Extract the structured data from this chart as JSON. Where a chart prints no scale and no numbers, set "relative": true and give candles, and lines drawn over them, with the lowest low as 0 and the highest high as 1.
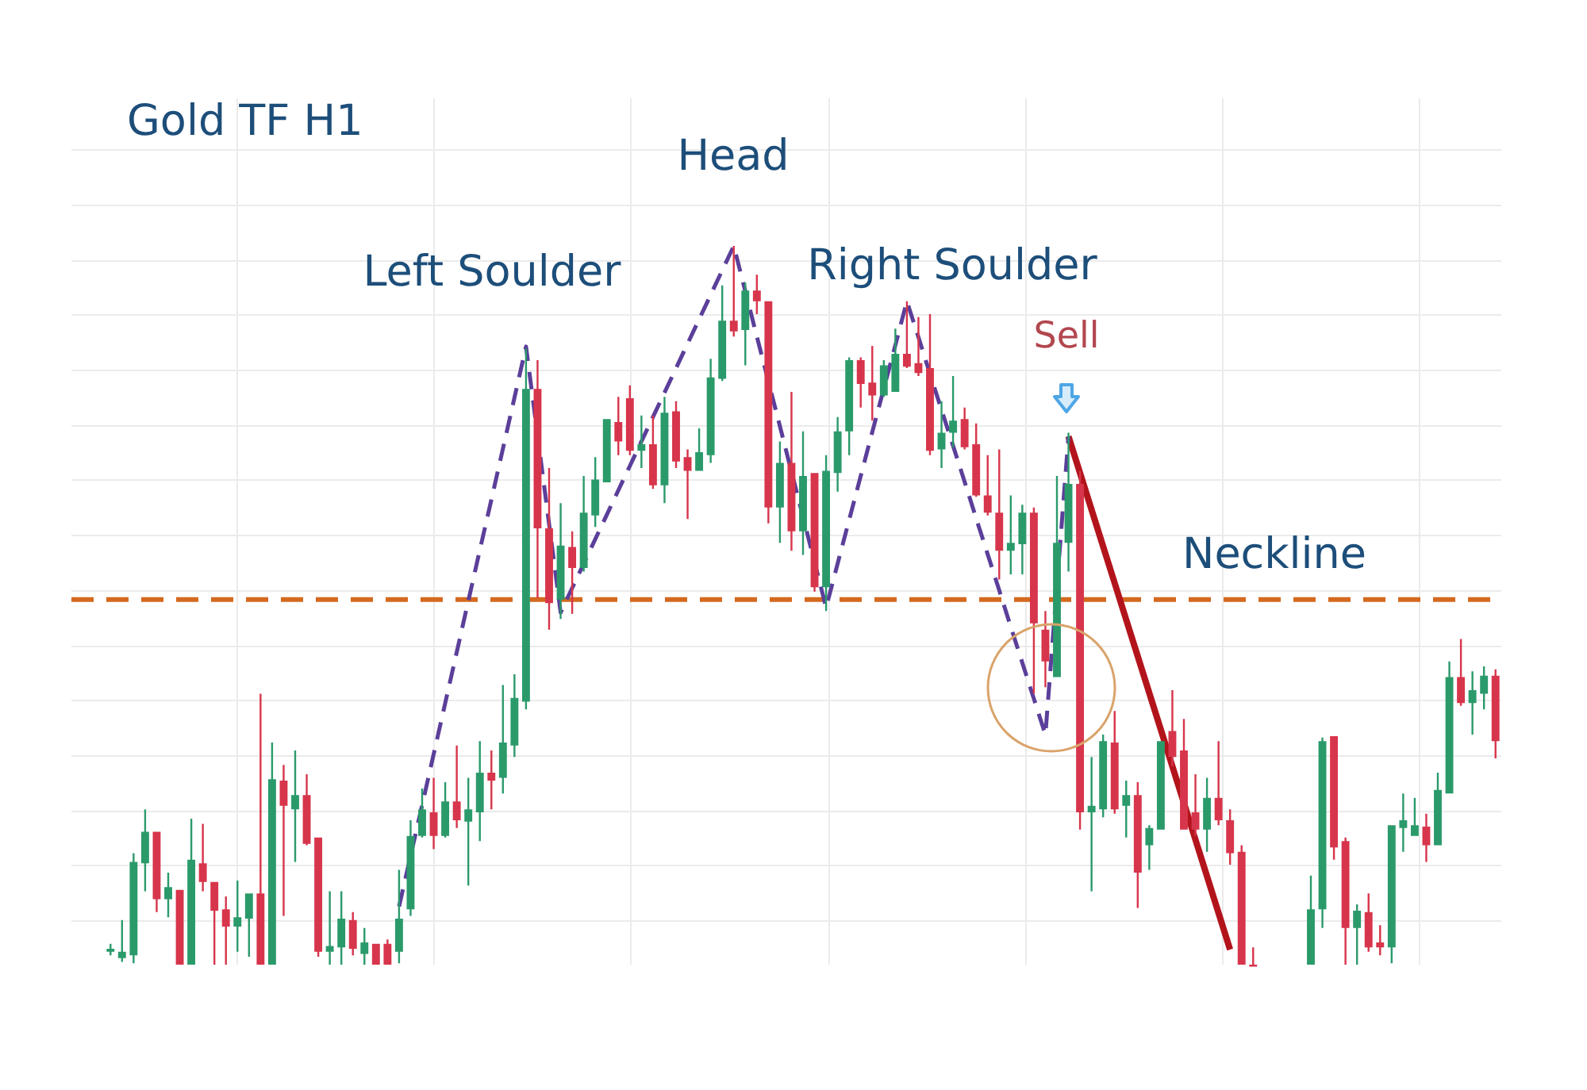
{
  "chart_data": {
    "type": "candlestick",
    "title": "Gold TF H1",
    "relative": true,
    "grid": true,
    "categories": [
      null,
      null,
      null,
      null,
      null,
      null,
      null,
      null,
      null,
      null,
      null,
      null,
      null,
      null,
      null,
      null,
      null,
      null,
      null,
      null,
      null,
      null,
      null,
      null,
      null,
      null,
      null,
      null,
      null,
      null,
      null,
      null,
      null,
      null,
      null,
      null,
      null,
      null,
      null,
      null,
      null,
      null,
      null,
      null,
      null,
      null,
      null,
      null,
      null,
      null,
      null,
      null,
      null,
      null,
      null,
      null,
      null,
      null,
      null,
      null,
      null,
      null,
      null,
      null,
      null,
      null,
      null,
      null,
      null,
      null,
      null,
      null,
      null,
      null,
      null,
      null,
      null,
      null,
      null,
      null,
      null,
      null,
      null,
      null,
      null,
      null,
      null,
      null,
      null,
      null,
      null,
      null,
      null,
      null,
      null,
      null,
      null,
      null,
      null,
      null,
      null,
      null,
      null,
      null,
      null,
      null,
      null,
      null,
      null,
      null,
      null,
      null,
      null,
      null,
      null,
      null,
      null,
      null,
      null,
      null,
      null
    ],
    "ohlc": [
      [
        0.018,
        0.029,
        0.013,
        0.022
      ],
      [
        0.009,
        0.062,
        0.004,
        0.018
      ],
      [
        0.013,
        0.155,
        0.002,
        0.143
      ],
      [
        0.141,
        0.216,
        0.102,
        0.185
      ],
      [
        0.185,
        0.185,
        0.073,
        0.091
      ],
      [
        0.091,
        0.128,
        0.066,
        0.108
      ],
      [
        0.104,
        0.104,
        0,
        0
      ],
      [
        0,
        0.203,
        0,
        0.146
      ],
      [
        0.141,
        0.196,
        0.102,
        0.115
      ],
      [
        0.115,
        0.115,
        0,
        0.075
      ],
      [
        0.077,
        0.095,
        0,
        0.053
      ],
      [
        0.053,
        0.117,
        0.018,
        0.066
      ],
      [
        0.064,
        0.099,
        0.011,
        0.099
      ],
      [
        0.099,
        0.377,
        0,
        0
      ],
      [
        0,
        0.309,
        0,
        0.258
      ],
      [
        0.256,
        0.278,
        0.068,
        0.221
      ],
      [
        0.216,
        0.298,
        0.143,
        0.236
      ],
      [
        0.236,
        0.265,
        0.166,
        0.168
      ],
      [
        0.177,
        0.177,
        0.011,
        0.018
      ],
      [
        0.018,
        0.102,
        0,
        0.026
      ],
      [
        0.024,
        0.102,
        0,
        0.064
      ],
      [
        0.062,
        0.073,
        0.013,
        0.022
      ],
      [
        0.015,
        0.051,
        0,
        0.031
      ],
      [
        0.029,
        0.029,
        0,
        0
      ],
      [
        0.029,
        0.035,
        0,
        0
      ],
      [
        0.018,
        0.132,
        0.002,
        0.064
      ],
      [
        0.077,
        0.201,
        0.068,
        0.179
      ],
      [
        0.179,
        0.245,
        0.177,
        0.216
      ],
      [
        0.212,
        0.26,
        0.161,
        0.179
      ],
      [
        0.179,
        0.254,
        0.177,
        0.227
      ],
      [
        0.227,
        0.305,
        0.19,
        0.201
      ],
      [
        0.199,
        0.26,
        0.11,
        0.216
      ],
      [
        0.212,
        0.311,
        0.172,
        0.267
      ],
      [
        0.267,
        0.298,
        0.216,
        0.256
      ],
      [
        0.26,
        0.389,
        0.238,
        0.309
      ],
      [
        0.305,
        0.404,
        0.289,
        0.371
      ],
      [
        0.366,
        0.857,
        0.355,
        0.801
      ],
      [
        0.801,
        0.841,
        0.51,
        0.607
      ],
      [
        0.607,
        0.691,
        0.466,
        0.503
      ],
      [
        0.508,
        0.642,
        0.481,
        0.583
      ],
      [
        0.581,
        0.603,
        0.488,
        0.552
      ],
      [
        0.552,
        0.68,
        0.547,
        0.629
      ],
      [
        0.625,
        0.706,
        0.609,
        0.675
      ],
      [
        0.671,
        0.759,
        0.671,
        0.759
      ],
      [
        0.755,
        0.79,
        0.709,
        0.728
      ],
      [
        0.788,
        0.806,
        0.709,
        0.715
      ],
      [
        0.715,
        0.764,
        0.691,
        0.724
      ],
      [
        0.724,
        0.764,
        0.662,
        0.667
      ],
      [
        0.667,
        0.79,
        0.642,
        0.768
      ],
      [
        0.77,
        0.784,
        0.691,
        0.7
      ],
      [
        0.706,
        0.717,
        0.62,
        0.687
      ],
      [
        0.687,
        0.746,
        0.687,
        0.713
      ],
      [
        0.709,
        0.843,
        0.698,
        0.817
      ],
      [
        0.815,
        0.945,
        0.812,
        0.896
      ],
      [
        0.896,
        1,
        0.874,
        0.881
      ],
      [
        0.883,
        0.949,
        0.834,
        0.938
      ],
      [
        0.938,
        0.96,
        0.905,
        0.923
      ],
      [
        0.923,
        0.923,
        0.614,
        0.636
      ],
      [
        0.636,
        0.728,
        0.587,
        0.698
      ],
      [
        0.698,
        0.797,
        0.576,
        0.603
      ],
      [
        0.603,
        0.742,
        0.57,
        0.68
      ],
      [
        0.684,
        0.684,
        0.519,
        0.525
      ],
      [
        0.525,
        0.709,
        0.492,
        0.687
      ],
      [
        0.684,
        0.762,
        0.658,
        0.742
      ],
      [
        0.742,
        0.845,
        0.709,
        0.841
      ],
      [
        0.841,
        0.845,
        0.775,
        0.808
      ],
      [
        0.81,
        0.861,
        0.757,
        0.792
      ],
      [
        0.792,
        0.841,
        0.79,
        0.834
      ],
      [
        0.797,
        0.885,
        0.797,
        0.85
      ],
      [
        0.85,
        0.923,
        0.83,
        0.832
      ],
      [
        0.837,
        0.901,
        0.819,
        0.823
      ],
      [
        0.83,
        0.905,
        0.709,
        0.715
      ],
      [
        0.717,
        0.784,
        0.691,
        0.74
      ],
      [
        0.74,
        0.819,
        0.72,
        0.757
      ],
      [
        0.759,
        0.775,
        0.717,
        0.72
      ],
      [
        0.724,
        0.753,
        0.651,
        0.653
      ],
      [
        0.653,
        0.709,
        0.625,
        0.629
      ],
      [
        0.629,
        0.717,
        0.536,
        0.576
      ],
      [
        0.576,
        0.653,
        0.543,
        0.587
      ],
      [
        0.585,
        0.64,
        0.543,
        0.629
      ],
      [
        0.629,
        0.636,
        0.377,
        0.475
      ],
      [
        0.466,
        0.492,
        0.386,
        0.422
      ],
      [
        0.4,
        0.68,
        0.4,
        0.587
      ],
      [
        0.587,
        0.74,
        0.547,
        0.669
      ],
      [
        0.669,
        0.687,
        0.188,
        0.212
      ],
      [
        0.212,
        0.289,
        0.102,
        0.221
      ],
      [
        0.216,
        0.32,
        0.205,
        0.311
      ],
      [
        0.309,
        0.353,
        0.21,
        0.216
      ],
      [
        0.221,
        0.256,
        0.177,
        0.236
      ],
      [
        0.236,
        0.254,
        0.079,
        0.128
      ],
      [
        0.166,
        0.194,
        0.132,
        0.19
      ],
      [
        0.188,
        0.311,
        0.188,
        0.311
      ],
      [
        0.325,
        0.382,
        0.276,
        0.289
      ],
      [
        0.298,
        0.342,
        0.188,
        0.188
      ],
      [
        0.212,
        0.265,
        0.179,
        0.188
      ],
      [
        0.188,
        0.26,
        0.157,
        0.232
      ],
      [
        0.232,
        0.311,
        0.194,
        0.201
      ],
      [
        0.201,
        0.216,
        0.139,
        0.155
      ],
      [
        0.157,
        0.166,
        0,
        0
      ],
      [
        0,
        0.024,
        0,
        0
      ],
      null,
      null,
      null,
      null,
      [
        0,
        0.124,
        0,
        0.077
      ],
      [
        0.077,
        0.316,
        0.051,
        0.311
      ],
      [
        0.318,
        0.318,
        0.146,
        0.163
      ],
      [
        0.172,
        0.177,
        0,
        0.051
      ],
      [
        0.051,
        0.084,
        0,
        0.075
      ],
      [
        0.073,
        0.099,
        0.018,
        0.024
      ],
      [
        0.031,
        0.055,
        0.013,
        0.024
      ],
      [
        0.024,
        0.194,
        0.002,
        0.194
      ],
      [
        0.19,
        0.238,
        0.157,
        0.201
      ],
      [
        0.179,
        0.232,
        0.179,
        0.194
      ],
      [
        0.192,
        0.21,
        0.143,
        0.166
      ],
      [
        0.166,
        0.267,
        0.166,
        0.243
      ],
      [
        0.238,
        0.422,
        0.238,
        0.4
      ],
      [
        0.4,
        0.453,
        0.36,
        0.364
      ],
      [
        0.364,
        0.408,
        0.32,
        0.382
      ],
      [
        0.377,
        0.415,
        0.355,
        0.402
      ],
      [
        0.402,
        0.411,
        0.287,
        0.311
      ]
    ],
    "colors": [
      "#2b9a6b",
      "#2b9a6b",
      "#2b9a6b",
      "#2b9a6b",
      "#d7354b",
      "#2b9a6b",
      "#d7354b",
      "#2b9a6b",
      "#d7354b",
      "#d7354b",
      "#d7354b",
      "#2b9a6b",
      "#2b9a6b",
      "#d7354b",
      "#2b9a6b",
      "#d7354b",
      "#2b9a6b",
      "#d7354b",
      "#d7354b",
      "#2b9a6b",
      "#2b9a6b",
      "#d7354b",
      "#2b9a6b",
      "#d7354b",
      "#d7354b",
      "#2b9a6b",
      "#2b9a6b",
      "#2b9a6b",
      "#d7354b",
      "#2b9a6b",
      "#d7354b",
      "#2b9a6b",
      "#2b9a6b",
      "#d7354b",
      "#2b9a6b",
      "#2b9a6b",
      "#2b9a6b",
      "#d7354b",
      "#d7354b",
      "#2b9a6b",
      "#d7354b",
      "#2b9a6b",
      "#2b9a6b",
      "#2b9a6b",
      "#d7354b",
      "#d7354b",
      "#2b9a6b",
      "#d7354b",
      "#2b9a6b",
      "#d7354b",
      "#d7354b",
      "#2b9a6b",
      "#2b9a6b",
      "#2b9a6b",
      "#d7354b",
      "#2b9a6b",
      "#d7354b",
      "#d7354b",
      "#2b9a6b",
      "#d7354b",
      "#2b9a6b",
      "#d7354b",
      "#2b9a6b",
      "#2b9a6b",
      "#2b9a6b",
      "#d7354b",
      "#d7354b",
      "#2b9a6b",
      "#2b9a6b",
      "#d7354b",
      "#d7354b",
      "#d7354b",
      "#2b9a6b",
      "#2b9a6b",
      "#d7354b",
      "#d7354b",
      "#d7354b",
      "#d7354b",
      "#2b9a6b",
      "#2b9a6b",
      "#d7354b",
      "#d7354b",
      "#2b9a6b",
      "#2b9a6b",
      "#d7354b",
      "#2b9a6b",
      "#2b9a6b",
      "#d7354b",
      "#2b9a6b",
      "#d7354b",
      "#2b9a6b",
      "#2b9a6b",
      "#d7354b",
      "#d7354b",
      "#d7354b",
      "#2b9a6b",
      "#d7354b",
      "#d7354b",
      "#d7354b",
      "#d7354b",
      null,
      null,
      null,
      null,
      "#2b9a6b",
      "#2b9a6b",
      "#d7354b",
      "#d7354b",
      "#2b9a6b",
      "#d7354b",
      "#d7354b",
      "#2b9a6b",
      "#2b9a6b",
      "#2b9a6b",
      "#d7354b",
      "#2b9a6b",
      "#2b9a6b",
      "#d7354b",
      "#2b9a6b",
      "#2b9a6b",
      "#d7354b"
    ],
    "series": [
      {
        "type": "line",
        "color": "#5b3f9a",
        "line_style": "dashed",
        "values": [
          null,
          null,
          null,
          null,
          null,
          null,
          null,
          null,
          null,
          null,
          null,
          null,
          null,
          null,
          null,
          null,
          null,
          null,
          null,
          null,
          null,
          null,
          null,
          null,
          null,
          0.081,
          null,
          0.222,
          0.293,
          0.364,
          0.435,
          0.506,
          0.577,
          0.647,
          0.718,
          0.789,
          0.86,
          null,
          0.613,
          0.49,
          0.524,
          0.558,
          0.592,
          0.626,
          0.66,
          0.694,
          0.728,
          0.762,
          0.796,
          0.83,
          0.864,
          0.898,
          0.932,
          0.966,
          1,
          0.937,
          0.874,
          null,
          0.749,
          null,
          null,
          null,
          0.497,
          0.558,
          0.619,
          0.68,
          0.741,
          null,
          0.862,
          0.923,
          0.873,
          0.822,
          0.772,
          0.722,
          0.672,
          0.621,
          0.571,
          0.521,
          0.47,
          0.42,
          0.37,
          0.32,
          null,
          0.735,
          null,
          null,
          null,
          null,
          null,
          null,
          null,
          null,
          null,
          null,
          null,
          null,
          null,
          null,
          null,
          null,
          null,
          null,
          null,
          null,
          null,
          null,
          null,
          null,
          null,
          null,
          null,
          null,
          null,
          null,
          null,
          null,
          null,
          null,
          null,
          null,
          null
        ]
      },
      {
        "type": "line",
        "color": "#b3141c",
        "values": [
          null,
          null,
          null,
          null,
          null,
          null,
          null,
          null,
          null,
          null,
          null,
          null,
          null,
          null,
          null,
          null,
          null,
          null,
          null,
          null,
          null,
          null,
          null,
          null,
          null,
          null,
          null,
          null,
          null,
          null,
          null,
          null,
          null,
          null,
          null,
          null,
          null,
          null,
          null,
          null,
          null,
          null,
          null,
          null,
          null,
          null,
          null,
          null,
          null,
          null,
          null,
          null,
          null,
          null,
          null,
          null,
          null,
          null,
          null,
          null,
          null,
          null,
          null,
          null,
          null,
          null,
          null,
          null,
          null,
          null,
          null,
          null,
          null,
          null,
          null,
          null,
          null,
          null,
          null,
          null,
          null,
          null,
          null,
          0.735,
          0.684,
          0.633,
          0.582,
          0.531,
          0.48,
          0.429,
          0.378,
          0.327,
          0.276,
          0.225,
          0.174,
          0.123,
          0.072,
          0.021,
          null,
          null,
          null,
          null,
          null,
          null,
          null,
          null,
          null,
          null,
          null,
          null,
          null,
          null,
          null,
          null,
          null,
          null,
          null,
          null,
          null,
          null,
          null
        ]
      }
    ],
    "ref_lines": [
      {
        "axis": "y",
        "value": 0.508,
        "label": "Neckline",
        "color": "#d4691f",
        "line_style": "dashed"
      }
    ],
    "annotations": [
      "Left Soulder",
      "Head",
      "Right Soulder",
      "Sell"
    ]
  }
}
